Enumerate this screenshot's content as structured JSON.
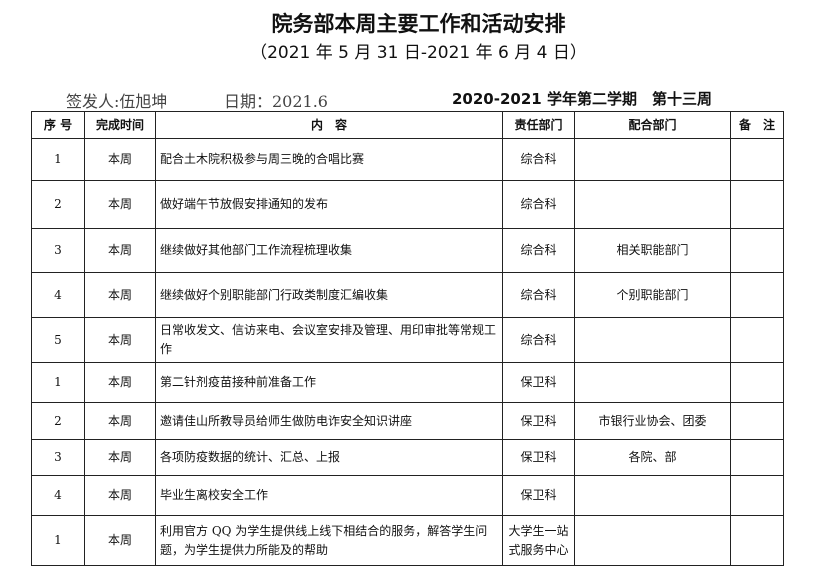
{
  "title": "院务部本周主要工作和活动安排",
  "subtitle": "（2021 年 5 月 31 日-2021 年 6 月 4 日）",
  "issuer": "签发人:伍旭坤",
  "date": "日期：2021.6",
  "term": "2020-2021 学年第二学期　第十三周",
  "headers": [
    "序 号",
    "完成时间",
    "内　容",
    "责任部门",
    "配合部门",
    "备　注"
  ],
  "rows": [
    {
      "no": "1",
      "time": "本周",
      "content": "配合土木院积极参与周三晚的合唱比赛",
      "dept": "综合科",
      "coop": "",
      "note": ""
    },
    {
      "no": "2",
      "time": "本周",
      "content": "做好端午节放假安排通知的发布",
      "dept": "综合科",
      "coop": "",
      "note": ""
    },
    {
      "no": "3",
      "time": "本周",
      "content": "继续做好其他部门工作流程梳理收集",
      "dept": "综合科",
      "coop": "相关职能部门",
      "note": ""
    },
    {
      "no": "4",
      "time": "本周",
      "content": "继续做好个别职能部门行政类制度汇编收集",
      "dept": "综合科",
      "coop": "个别职能部门",
      "note": ""
    },
    {
      "no": "5",
      "time": "本周",
      "content": "日常收发文、信访来电、会议室安排及管理、用印审批等常规工作",
      "dept": "综合科",
      "coop": "",
      "note": ""
    },
    {
      "no": "1",
      "time": "本周",
      "content": "第二针剂疫苗接种前准备工作",
      "dept": "保卫科",
      "coop": "",
      "note": ""
    },
    {
      "no": "2",
      "time": "本周",
      "content": "邀请佳山所教导员给师生做防电诈安全知识讲座",
      "dept": "保卫科",
      "coop": "市银行业协会、团委",
      "note": ""
    },
    {
      "no": "3",
      "time": "本周",
      "content": "各项防疫数据的统计、汇总、上报",
      "dept": "保卫科",
      "coop": "各院、部",
      "note": ""
    },
    {
      "no": "4",
      "time": "本周",
      "content": "毕业生离校安全工作",
      "dept": "保卫科",
      "coop": "",
      "note": ""
    },
    {
      "no": "1",
      "time": "本周",
      "content": "利用官方 QQ 为学生提供线上线下相结合的服务，解答学生问题，为学生提供力所能及的帮助",
      "dept": "大学生一站式服务中心",
      "coop": "",
      "note": ""
    }
  ]
}
